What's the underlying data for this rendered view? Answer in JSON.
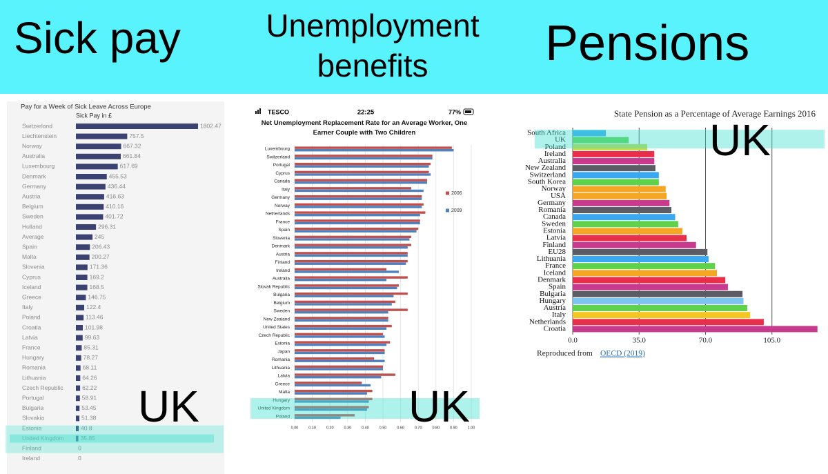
{
  "header": {
    "titles": [
      "Sick pay",
      "Unemployment benefits",
      "Pensions"
    ]
  },
  "status_bar": {
    "carrier": "TESCO",
    "time": "22:25",
    "battery": "77%"
  },
  "chart_data": [
    {
      "type": "bar",
      "orientation": "horizontal",
      "title": "Pay for a Week of Sick Leave Across Europe",
      "subtitle": "Sick Pay in £",
      "categories": [
        "Switzerland",
        "Liechtenstein",
        "Norway",
        "Australia",
        "Luxembourg",
        "Denmark",
        "Germany",
        "Austria",
        "Belgium",
        "Sweden",
        "Holland",
        "Average",
        "Spain",
        "Malta",
        "Slovenia",
        "Cyprus",
        "Iceland",
        "Greece",
        "Italy",
        "Poland",
        "Croatia",
        "Latvia",
        "France",
        "Hungary",
        "Romania",
        "Lithuania",
        "Czech Republic",
        "Portugal",
        "Bulgaria",
        "Slovakia",
        "Estonia",
        "United Kingdom",
        "Finland",
        "Ireland"
      ],
      "values": [
        1802.47,
        757.5,
        667.32,
        661.84,
        617.69,
        455.53,
        436.44,
        416.63,
        410.16,
        401.72,
        296.31,
        245,
        206.43,
        200.27,
        171.36,
        169.2,
        168.5,
        146.75,
        122.4,
        113.46,
        101.98,
        99.63,
        85.31,
        78.27,
        68.11,
        64.26,
        62.22,
        58.91,
        53.45,
        51.38,
        40.8,
        35.85,
        0,
        0
      ],
      "color": "#3b4170",
      "highlight": "United Kingdom",
      "annotation": "UK"
    },
    {
      "type": "bar",
      "orientation": "horizontal",
      "title": "Net Unemployment Replacement Rate for an Average Worker, One Earner Couple with Two Children",
      "categories": [
        "Luxembourg",
        "Switzerland",
        "Portugal",
        "Cyprus",
        "Canada",
        "Italy",
        "Germany",
        "Norway",
        "Netherlands",
        "France",
        "Spain",
        "Slovenia",
        "Denmark",
        "Austria",
        "Finland",
        "Ireland",
        "Australia",
        "Slovak Republic",
        "Bulgaria",
        "Belgium",
        "Sweden",
        "New Zealand",
        "United States",
        "Czech Republic",
        "Estonia",
        "Japan",
        "Romania",
        "Lithuania",
        "Latvia",
        "Greece",
        "Malta",
        "Hungary",
        "United Kingdom",
        "Poland"
      ],
      "series": [
        {
          "name": "2006",
          "color": "#c0504d",
          "values": [
            0.89,
            0.78,
            0.77,
            0.76,
            0.75,
            0.66,
            0.72,
            0.73,
            0.74,
            0.71,
            0.7,
            0.66,
            0.66,
            0.64,
            0.64,
            0.52,
            0.64,
            0.59,
            0.64,
            0.57,
            0.64,
            0.53,
            0.55,
            0.5,
            0.54,
            0.51,
            0.45,
            0.5,
            0.57,
            0.38,
            0.44,
            0.44,
            0.42,
            0.34
          ]
        },
        {
          "name": "2009",
          "color": "#4f81bd",
          "values": [
            0.9,
            0.78,
            0.76,
            0.77,
            0.75,
            0.73,
            0.72,
            0.72,
            0.71,
            0.71,
            0.69,
            0.65,
            0.64,
            0.64,
            0.63,
            0.59,
            0.52,
            0.58,
            0.56,
            0.55,
            0.53,
            0.53,
            0.52,
            0.51,
            0.52,
            0.51,
            0.51,
            0.5,
            0.49,
            0.43,
            0.41,
            0.42,
            0.41,
            0.26
          ]
        }
      ],
      "xlim": [
        0,
        1
      ],
      "xticks": [
        {
          "value": 0,
          "label": "0.00"
        },
        {
          "value": 0.1,
          "label": "0.10"
        },
        {
          "value": 0.2,
          "label": "0.20"
        },
        {
          "value": 0.3,
          "label": "0.30"
        },
        {
          "value": 0.4,
          "label": "0.40"
        },
        {
          "value": 0.5,
          "label": "0.50"
        },
        {
          "value": 0.6,
          "label": "0.60"
        },
        {
          "value": 0.7,
          "label": "0.70"
        },
        {
          "value": 0.8,
          "label": "0.80"
        },
        {
          "value": 0.9,
          "label": "0.90"
        },
        {
          "value": 1,
          "label": "1.00"
        }
      ],
      "grid": true,
      "legend": "right",
      "highlight": "United Kingdom",
      "annotation": "UK"
    },
    {
      "type": "bar",
      "orientation": "horizontal",
      "title": "State Pension as a Percentage of Average Earnings 2016",
      "categories": [
        "South Africa",
        "UK",
        "Poland",
        "Ireland",
        "Australia",
        "New Zealand",
        "Switzerland",
        "South Korea",
        "Norway",
        "USA",
        "Germany",
        "Romania",
        "Canada",
        "Sweden",
        "Estonia",
        "Latvia",
        "Finland",
        "EU28",
        "Lithuania",
        "France",
        "Iceland",
        "Denmark",
        "Spain",
        "Bulgaria",
        "Hungary",
        "Austria",
        "Italy",
        "Netherlands",
        "Croatia"
      ],
      "values": [
        17.5,
        29.5,
        39.3,
        43,
        43,
        43.6,
        45.4,
        45.4,
        49,
        49.5,
        51,
        52,
        54,
        55.6,
        57.8,
        60,
        65,
        71,
        71.6,
        75,
        76,
        80.4,
        81.8,
        89.5,
        90,
        92,
        93.5,
        100.7,
        129
      ],
      "colors": [
        "#3aa8f0",
        "#5fd14b",
        "#c7d94a",
        "#e8304c",
        "#c83a8e",
        "#5c5c64",
        "#3aa8f0",
        "#5fd14b",
        "#f5a623",
        "#f5a623",
        "#c83a8e",
        "#5c5c64",
        "#3aa8f0",
        "#5fd14b",
        "#f5a623",
        "#e8304c",
        "#c83a8e",
        "#5c5c64",
        "#3aa8f0",
        "#5fd14b",
        "#f5a623",
        "#e8304c",
        "#c83a8e",
        "#5c5c64",
        "#7cc4f2",
        "#5fd14b",
        "#f5c623",
        "#e8304c",
        "#c83a8e"
      ],
      "xlim": [
        0,
        130
      ],
      "xticks": [
        {
          "value": 0,
          "label": "0.0"
        },
        {
          "value": 35,
          "label": "35.0"
        },
        {
          "value": 70,
          "label": "70.0"
        },
        {
          "value": 105,
          "label": "105.0"
        }
      ],
      "grid": true,
      "highlight": "UK",
      "annotation": "UK",
      "source": {
        "text": "Reproduced from",
        "link": "OECD (2019)"
      }
    }
  ]
}
